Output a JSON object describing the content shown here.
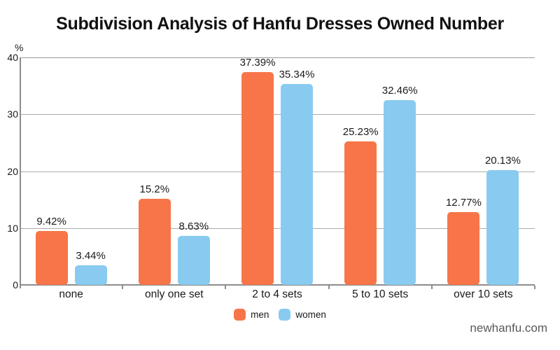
{
  "title": "Subdivision Analysis of Hanfu Dresses Owned Number",
  "watermark": "newhanfu.com",
  "chart_data": {
    "type": "bar",
    "title": "Subdivision Analysis of Hanfu Dresses Owned Number",
    "categories": [
      "none",
      "only one set",
      "2 to 4 sets",
      "5 to 10 sets",
      "over 10 sets"
    ],
    "series": [
      {
        "name": "men",
        "color": "#F77548",
        "values": [
          9.42,
          15.2,
          37.39,
          25.23,
          12.77
        ],
        "labels": [
          "9.42%",
          "15.2%",
          "37.39%",
          "25.23%",
          "12.77%"
        ]
      },
      {
        "name": "women",
        "color": "#89CBF0",
        "values": [
          3.44,
          8.63,
          35.34,
          32.46,
          20.13
        ],
        "labels": [
          "3.44%",
          "8.63%",
          "35.34%",
          "32.46%",
          "20.13%"
        ]
      }
    ],
    "xlabel": "",
    "ylabel": "%",
    "ylim": [
      0,
      40
    ],
    "yticks": [
      0,
      10,
      20,
      30,
      40
    ],
    "grid": true,
    "legend_position": "bottom-center"
  }
}
